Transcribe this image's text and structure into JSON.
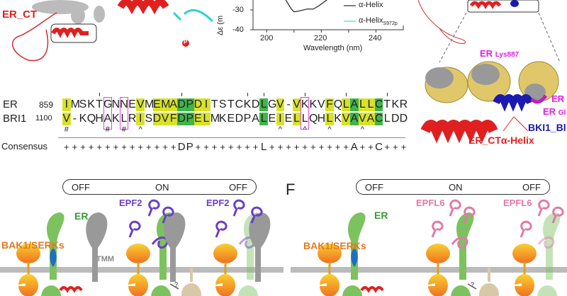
{
  "structure_left": {
    "label": "ER_CT",
    "phospho": "P"
  },
  "cd_plot": {
    "chart_data": {
      "type": "line",
      "xlabel": "Wavelength (nm)",
      "ylabel": "Δε (m",
      "xticks": [
        "200",
        "220",
        "240"
      ],
      "yticks": [
        "-30",
        "-40"
      ],
      "xlim": [
        195,
        250
      ],
      "ylim": [
        -40,
        -20
      ],
      "series": [
        {
          "name": "α-Helix",
          "color": "#333333",
          "x": [
            205,
            207,
            209,
            210,
            212,
            215,
            217,
            219,
            221,
            223
          ],
          "y": [
            -20,
            -25,
            -29.5,
            -31,
            -30.5,
            -29.5,
            -29.6,
            -28,
            -26,
            -24
          ]
        },
        {
          "name": "α-Helix",
          "name_sub": "S972p",
          "color": "#40e0d0",
          "x": [],
          "y": []
        }
      ]
    }
  },
  "alignment": {
    "rows": [
      {
        "name": "ER",
        "start": "859",
        "seq": "IMSKTGNNEVMEMADPDITSTCKDLGV-VKKVFQLALLCTKR"
      },
      {
        "name": "BRI1",
        "start": "1100",
        "seq": "V-KQHAKLRISDVFDPELMKEDPALEIELLQHLKVAVACLDD"
      }
    ],
    "yellow_cols": [
      1,
      10,
      12,
      13,
      14,
      17,
      18,
      27,
      29,
      33,
      35,
      37,
      38
    ],
    "green_cols": [
      15,
      16,
      25,
      36,
      39
    ],
    "boxed_cols": [
      6,
      8,
      30
    ],
    "marks": [
      {
        "col": 1,
        "s": "#"
      },
      {
        "col": 6,
        "s": "#"
      },
      {
        "col": 8,
        "s": "#"
      },
      {
        "col": 10,
        "s": "^"
      },
      {
        "col": 27,
        "s": "^"
      },
      {
        "col": 30,
        "s": "^"
      },
      {
        "col": 33,
        "s": "^"
      },
      {
        "col": 37,
        "s": "^"
      }
    ],
    "tick_cols": [
      5,
      15,
      23,
      25,
      30,
      35,
      40
    ],
    "consensus_label": "Consensus",
    "consensus": "++++++++++++++DP++++++++L++++++++++A++C+++"
  },
  "structure_right": {
    "lys": "ER",
    "lys_sub": "Lys887",
    "er1": "ER",
    "er2": "ER",
    "er2_sub": "Gl",
    "bki": "BKI1_Bl",
    "helix": "ER_CTα-Helix"
  },
  "panel_e": {
    "states": [
      "OFF",
      "ON",
      "OFF"
    ],
    "bak": "BAK1/SERKs",
    "er": "ER",
    "tmm": "TMM",
    "ligand": "EPF2",
    "ligand2": "EPF2",
    "q": "?",
    "ligand_color": "#6a3fc8"
  },
  "panel_f": {
    "letter": "F",
    "states": [
      "OFF",
      "ON",
      "OFF"
    ],
    "bak": "BAK1/SERKs",
    "er": "ER",
    "ligand": "EPFL6",
    "ligand2": "EPFL6",
    "q": "?",
    "ligand_color": "#e07aa8"
  },
  "colors": {
    "er_red": "#e02020",
    "magenta": "#e020e0",
    "blue": "#1a1ab0",
    "orange": "#e07a20",
    "green": "#3a9a3a"
  }
}
